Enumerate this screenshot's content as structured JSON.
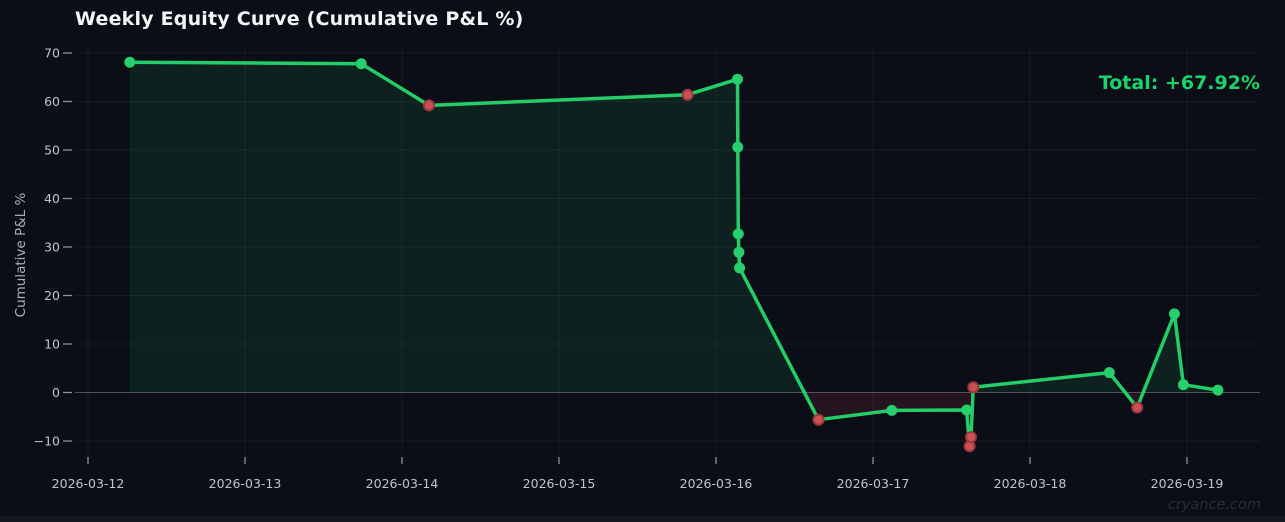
{
  "header": {
    "title": "Weekly Equity Curve (Cumulative P&L %)"
  },
  "summary": {
    "total": "Total: +67.92%"
  },
  "watermark": "cryance.com",
  "colors": {
    "background": "#0b0e16",
    "footer_strip": "#14171e",
    "title_text": "#f4f5f7",
    "total_text": "#1bd36a",
    "line_green": "#23cd68",
    "marker_win_fill": "#27d06c",
    "marker_loss_fill": "#cf5052",
    "marker_loss_ring": "#9c3840",
    "fill_positive": "rgba(35,205,104,0.10)",
    "fill_negative": "rgba(214,69,96,0.13)",
    "grid_line": "rgba(255,255,255,0.05)",
    "zero_line": "rgba(120,130,145,0.55)",
    "tick_text": "#c2c4ca",
    "tick_mark": "#8b8f98",
    "axis_title_text": "#a9adb5",
    "watermark_text": "#272d39"
  },
  "chart_data": {
    "type": "line",
    "title": "Weekly Equity Curve (Cumulative P&L %)",
    "ylabel": "Cumulative P&L %",
    "total_annotation": "Total: +67.92%",
    "x_tick_labels": [
      "2026-03-12",
      "2026-03-13",
      "2026-03-14",
      "2026-03-15",
      "2026-03-16",
      "2026-03-17",
      "2026-03-18",
      "2026-03-19"
    ],
    "y_ticks": [
      70,
      60,
      50,
      40,
      30,
      20,
      10,
      0,
      -10
    ],
    "ylim": [
      -15,
      73
    ],
    "x_unit": "days offset from 2026-03-12 tick",
    "grid": true,
    "legend": false,
    "baseline": 0,
    "points": [
      {
        "x_day": 0.266,
        "value": 68.1,
        "result": "win"
      },
      {
        "x_day": 1.74,
        "value": 67.8,
        "result": "win"
      },
      {
        "x_day": 2.172,
        "value": 59.2,
        "result": "loss"
      },
      {
        "x_day": 3.819,
        "value": 61.4,
        "result": "loss"
      },
      {
        "x_day": 4.137,
        "value": 64.6,
        "result": "win"
      },
      {
        "x_day": 4.139,
        "value": 50.6,
        "result": "win"
      },
      {
        "x_day": 4.142,
        "value": 32.7,
        "result": "win"
      },
      {
        "x_day": 4.146,
        "value": 28.9,
        "result": "win"
      },
      {
        "x_day": 4.15,
        "value": 25.7,
        "result": "win"
      },
      {
        "x_day": 4.653,
        "value": -5.6,
        "result": "loss"
      },
      {
        "x_day": 5.12,
        "value": -3.7,
        "result": "win"
      },
      {
        "x_day": 5.596,
        "value": -3.6,
        "result": "win"
      },
      {
        "x_day": 5.615,
        "value": -11.1,
        "result": "loss"
      },
      {
        "x_day": 5.624,
        "value": -9.2,
        "result": "loss"
      },
      {
        "x_day": 5.639,
        "value": 1.1,
        "result": "loss"
      },
      {
        "x_day": 6.505,
        "value": 4.1,
        "result": "win"
      },
      {
        "x_day": 6.683,
        "value": -3.1,
        "result": "loss"
      },
      {
        "x_day": 6.92,
        "value": 16.2,
        "result": "win"
      },
      {
        "x_day": 6.977,
        "value": 1.6,
        "result": "win"
      },
      {
        "x_day": 7.197,
        "value": 0.5,
        "result": "win"
      }
    ]
  }
}
